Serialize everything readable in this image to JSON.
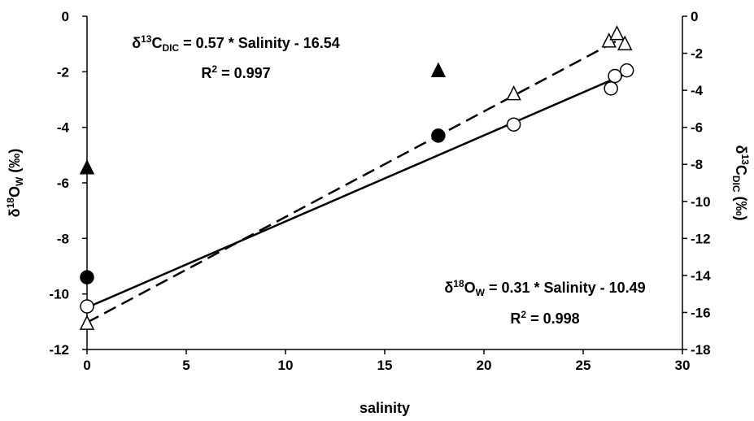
{
  "chart_data": {
    "type": "scatter",
    "xlabel": "salinity",
    "ylabel_left": {
      "base": "δ",
      "sup": "18",
      "main": "O",
      "sub": "W",
      "unit": " (‰)"
    },
    "ylabel_right": {
      "base": "δ",
      "sup": "13",
      "main": "C",
      "sub": "DIC",
      "unit": " (‰)"
    },
    "xlim": [
      0,
      30
    ],
    "ylim_left": [
      -12,
      0
    ],
    "ylim_right": [
      -18,
      0
    ],
    "x_ticks": [
      "0",
      "5",
      "10",
      "15",
      "20",
      "25",
      "30"
    ],
    "y_left_ticks": [
      "0",
      "-2",
      "-4",
      "-6",
      "-8",
      "-10",
      "-12"
    ],
    "y_right_ticks": [
      "0",
      "-2",
      "-4",
      "-6",
      "-8",
      "-10",
      "-12",
      "-14",
      "-16",
      "-18"
    ],
    "series": [
      {
        "marker": "open-circle",
        "axis": "left",
        "x": [
          0,
          21.5,
          26.4,
          26.6,
          27.2
        ],
        "y": [
          -10.45,
          -3.9,
          -2.6,
          -2.15,
          -1.95
        ]
      },
      {
        "marker": "filled-circle",
        "axis": "left",
        "x": [
          0,
          17.7
        ],
        "y": [
          -9.4,
          -4.3
        ]
      },
      {
        "marker": "open-triangle",
        "axis": "right",
        "x": [
          0,
          21.5,
          26.3,
          26.7,
          27.1
        ],
        "y": [
          -16.6,
          -4.2,
          -1.35,
          -0.95,
          -1.5
        ]
      },
      {
        "marker": "filled-triangle",
        "axis": "right",
        "x": [
          0,
          17.7
        ],
        "y": [
          -8.2,
          -2.95
        ]
      }
    ],
    "fit_lines": [
      {
        "style": "solid",
        "axis": "left",
        "x": [
          0,
          27.2
        ],
        "y": [
          -10.49,
          -2.058
        ]
      },
      {
        "style": "dashed",
        "axis": "right",
        "x": [
          0,
          27.0
        ],
        "y": [
          -16.54,
          -1.15
        ]
      }
    ],
    "annotations": [
      {
        "id": "dic",
        "lines": [
          {
            "parts": [
              [
                "",
                "δ"
              ],
              [
                "sup",
                "13"
              ],
              [
                "",
                "C"
              ],
              [
                "sub",
                "DIC"
              ],
              [
                "",
                " = 0.57 * Salinity - 16.54"
              ]
            ]
          },
          {
            "parts": [
              [
                "",
                "R"
              ],
              [
                "sup",
                "2"
              ],
              [
                "",
                " = 0.997"
              ]
            ]
          }
        ]
      },
      {
        "id": "ow",
        "lines": [
          {
            "parts": [
              [
                "",
                "δ"
              ],
              [
                "sup",
                "18"
              ],
              [
                "",
                "O"
              ],
              [
                "sub",
                "W"
              ],
              [
                "",
                " = 0.31 * Salinity - 10.49"
              ]
            ]
          },
          {
            "parts": [
              [
                "",
                "R"
              ],
              [
                "sup",
                "2"
              ],
              [
                "",
                " = 0.998"
              ]
            ]
          }
        ]
      }
    ]
  }
}
